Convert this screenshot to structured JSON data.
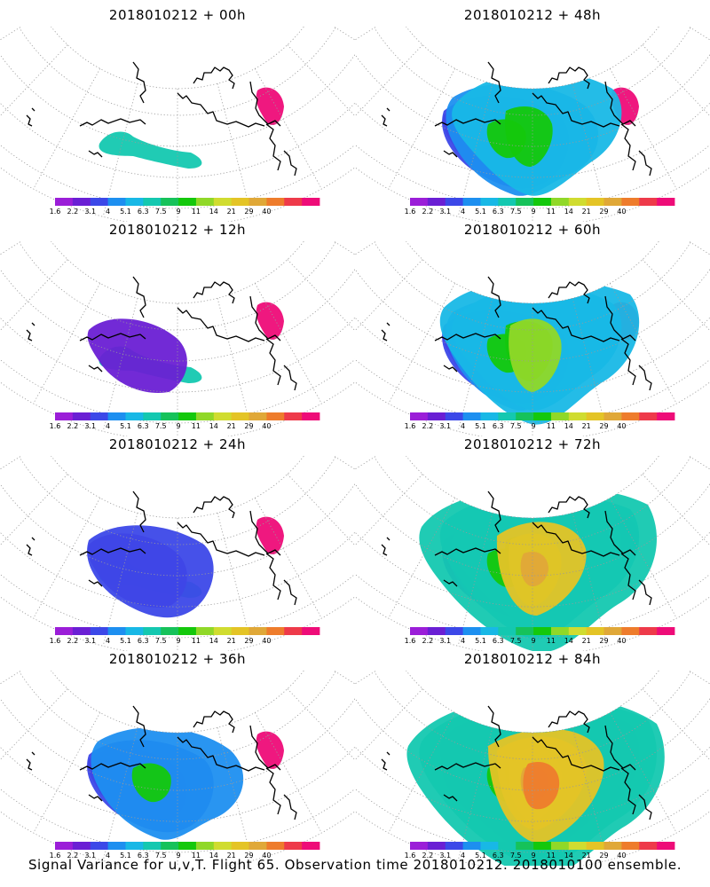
{
  "caption": "Signal Variance for u,v,T. Flight 65. Observation time 2018010212. 2018010100 ensemble.",
  "colorbar": {
    "colors": [
      "#9b1ed8",
      "#6a1fd4",
      "#3c48e8",
      "#1d8ff0",
      "#18b8e6",
      "#14c8b0",
      "#16c25a",
      "#14c80c",
      "#90d828",
      "#d0dc30",
      "#e4c426",
      "#e0a838",
      "#ee7c2c",
      "#ee3a4a",
      "#ee0c78"
    ],
    "labels": [
      "1.6",
      "2.2",
      "3.1",
      "4",
      "5.1",
      "6.3",
      "7.5",
      "9",
      "11",
      "14",
      "21",
      "29",
      "40"
    ]
  },
  "panels": [
    {
      "title": "2018010212 + 00h",
      "level": 0
    },
    {
      "title": "2018010212 + 48h",
      "level": 4
    },
    {
      "title": "2018010212 + 12h",
      "level": 1
    },
    {
      "title": "2018010212 + 60h",
      "level": 5
    },
    {
      "title": "2018010212 + 24h",
      "level": 2
    },
    {
      "title": "2018010212 + 72h",
      "level": 6
    },
    {
      "title": "2018010212 + 36h",
      "level": 3
    },
    {
      "title": "2018010212 + 84h",
      "level": 7
    }
  ]
}
